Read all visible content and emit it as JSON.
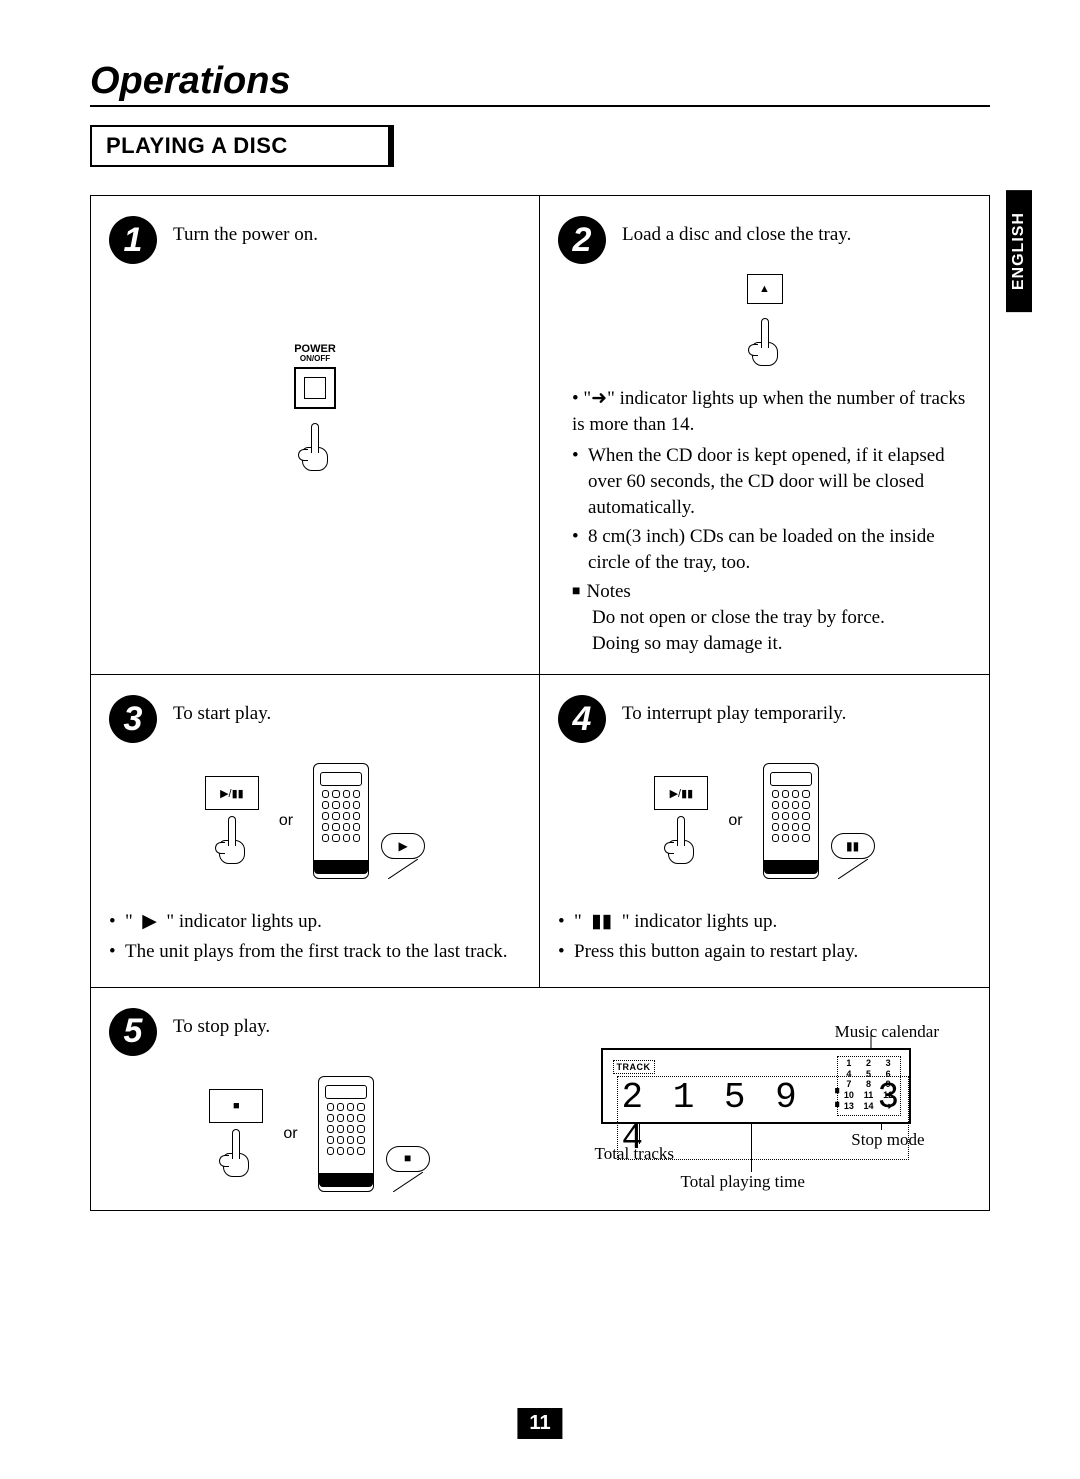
{
  "title": "Operations",
  "section": "PLAYING A DISC",
  "language_tab": "ENGLISH",
  "page_number": "11",
  "or_label": "or",
  "steps": {
    "s1": {
      "num": "1",
      "text": "Turn the power on.",
      "power_label_top": "POWER",
      "power_label_bottom": "ON/OFF"
    },
    "s2": {
      "num": "2",
      "text": "Load a disc and close the tray.",
      "bullet1_pre": "• \"",
      "bullet1_post": "\" indicator lights up when the number of tracks is more than 14.",
      "bullet2": "When the CD door is kept opened, if it elapsed over 60 seconds, the CD door will be closed automatically.",
      "bullet3": "8 cm(3 inch) CDs can be loaded on the inside circle of the tray, too.",
      "notes_label": "Notes",
      "note1": "Do not open or close the tray by force.",
      "note2": "Doing so may damage it."
    },
    "s3": {
      "num": "3",
      "text": "To start play.",
      "bullet1_pre": "\"",
      "bullet1_post": "\" indicator lights up.",
      "bullet2": "The unit plays from the first track to the last track."
    },
    "s4": {
      "num": "4",
      "text": "To interrupt play temporarily.",
      "bullet1_pre": "\"",
      "bullet1_post": "\" indicator lights up.",
      "bullet2": "Press this button again to restart play."
    },
    "s5": {
      "num": "5",
      "text": "To stop play.",
      "music_calendar": "Music calendar",
      "track_word": "TRACK",
      "lcd_value": "2 1  5 9 : 3 4",
      "cal_values": [
        "1",
        "2",
        "3",
        "4",
        "5",
        "6",
        "7",
        "8",
        "9",
        "10",
        "11",
        "12",
        "13",
        "14",
        "➜"
      ],
      "annot_stop": "Stop mode",
      "annot_total_tracks": "Total tracks",
      "annot_total_time": "Total playing time"
    }
  }
}
